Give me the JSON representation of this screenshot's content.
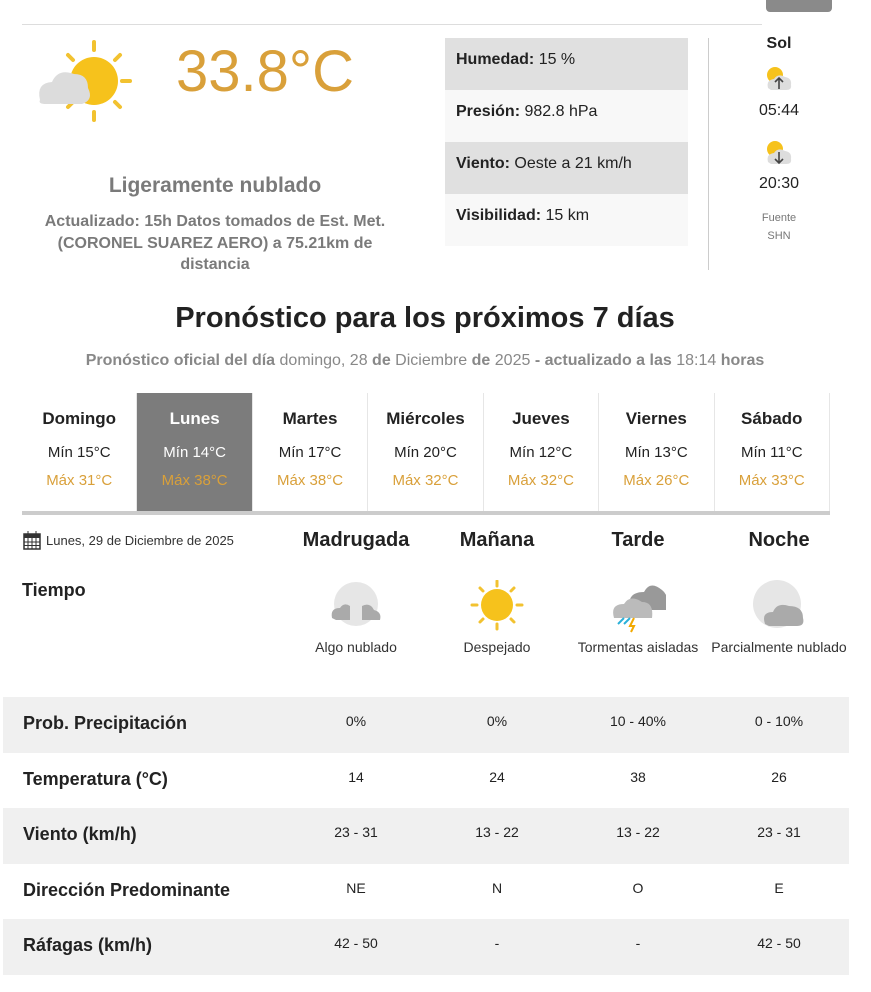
{
  "current": {
    "temperature": "33.8°C",
    "condition": "Ligeramente nublado",
    "icon": "partly-cloudy-sun-icon",
    "updated": "Actualizado: 15h Datos tomados de Est. Met. (CORONEL SUAREZ AERO) a 75.21km de distancia",
    "details": [
      {
        "label": "Humedad:",
        "value": "15 %"
      },
      {
        "label": "Presión:",
        "value": "982.8 hPa"
      },
      {
        "label": "Viento:",
        "value": "Oeste a 21 km/h"
      },
      {
        "label": "Visibilidad:",
        "value": "15 km"
      }
    ]
  },
  "sun": {
    "title": "Sol",
    "sunrise": "05:44",
    "sunset": "20:30",
    "source_label": "Fuente",
    "source": "SHN"
  },
  "forecast": {
    "title": "Pronóstico para los próximos 7 días",
    "subtitle": {
      "a": "Pronóstico oficial del día",
      "b": "domingo, 28",
      "c": "de",
      "d": "Diciembre",
      "e": "de",
      "f": "2025",
      "g": "- actualizado a las",
      "h": "18:14",
      "i": "horas"
    },
    "days": [
      {
        "day": "Domingo",
        "min": "Mín 15°C",
        "max": "Máx 31°C"
      },
      {
        "day": "Lunes",
        "min": "Mín 14°C",
        "max": "Máx 38°C",
        "selected": true
      },
      {
        "day": "Martes",
        "min": "Mín 17°C",
        "max": "Máx 38°C"
      },
      {
        "day": "Miércoles",
        "min": "Mín 20°C",
        "max": "Máx 32°C"
      },
      {
        "day": "Jueves",
        "min": "Mín 12°C",
        "max": "Máx 32°C"
      },
      {
        "day": "Viernes",
        "min": "Mín 13°C",
        "max": "Máx 26°C"
      },
      {
        "day": "Sábado",
        "min": "Mín 11°C",
        "max": "Máx 33°C"
      }
    ]
  },
  "detail": {
    "date": "Lunes, 29 de Diciembre de 2025",
    "weather_label": "Tiempo",
    "periods": [
      {
        "name": "Madrugada",
        "desc": "Algo nublado",
        "icon": "cloudy-night-icon"
      },
      {
        "name": "Mañana",
        "desc": "Despejado",
        "icon": "sun-icon"
      },
      {
        "name": "Tarde",
        "desc": "Tormentas aisladas",
        "icon": "thunderstorm-icon"
      },
      {
        "name": "Noche",
        "desc": "Parcialmente nublado",
        "icon": "partly-cloudy-night-icon"
      }
    ],
    "rows": [
      {
        "label": "Prob. Precipitación",
        "values": [
          "0%",
          "0%",
          "10 - 40%",
          "0 - 10%"
        ]
      },
      {
        "label": "Temperatura (°C)",
        "values": [
          "14",
          "24",
          "38",
          "26"
        ]
      },
      {
        "label": "Viento (km/h)",
        "values": [
          "23 - 31",
          "13 - 22",
          "13 - 22",
          "23 - 31"
        ]
      },
      {
        "label": "Dirección Predominante",
        "values": [
          "NE",
          "N",
          "O",
          "E"
        ]
      },
      {
        "label": "Ráfagas (km/h)",
        "values": [
          "42 - 50",
          "-",
          "-",
          "42 - 50"
        ]
      }
    ]
  },
  "colors": {
    "accent": "#d9a03a",
    "selected_tab": "#7c7c7c"
  }
}
